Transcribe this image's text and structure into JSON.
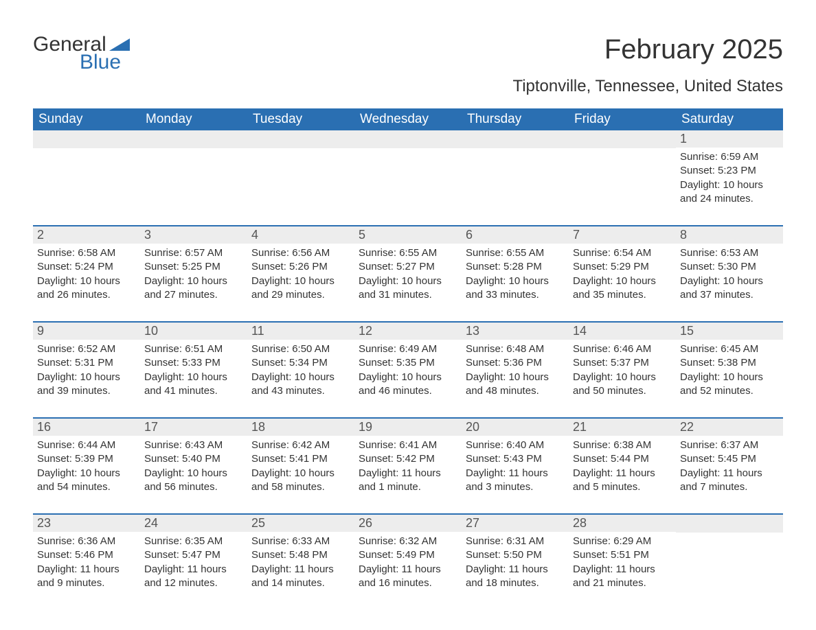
{
  "logo": {
    "text1": "General",
    "text2": "Blue",
    "flag_color": "#2a6fb2"
  },
  "title": "February 2025",
  "subtitle": "Tiptonville, Tennessee, United States",
  "day_headers": [
    "Sunday",
    "Monday",
    "Tuesday",
    "Wednesday",
    "Thursday",
    "Friday",
    "Saturday"
  ],
  "colors": {
    "header_bg": "#2a6fb2",
    "header_text": "#ffffff",
    "daynum_bg": "#ededed",
    "text": "#333333",
    "border": "#2a6fb2"
  },
  "weeks": [
    [
      {
        "n": "",
        "sr": "",
        "ss": "",
        "dl": ""
      },
      {
        "n": "",
        "sr": "",
        "ss": "",
        "dl": ""
      },
      {
        "n": "",
        "sr": "",
        "ss": "",
        "dl": ""
      },
      {
        "n": "",
        "sr": "",
        "ss": "",
        "dl": ""
      },
      {
        "n": "",
        "sr": "",
        "ss": "",
        "dl": ""
      },
      {
        "n": "",
        "sr": "",
        "ss": "",
        "dl": ""
      },
      {
        "n": "1",
        "sr": "Sunrise: 6:59 AM",
        "ss": "Sunset: 5:23 PM",
        "dl": "Daylight: 10 hours and 24 minutes."
      }
    ],
    [
      {
        "n": "2",
        "sr": "Sunrise: 6:58 AM",
        "ss": "Sunset: 5:24 PM",
        "dl": "Daylight: 10 hours and 26 minutes."
      },
      {
        "n": "3",
        "sr": "Sunrise: 6:57 AM",
        "ss": "Sunset: 5:25 PM",
        "dl": "Daylight: 10 hours and 27 minutes."
      },
      {
        "n": "4",
        "sr": "Sunrise: 6:56 AM",
        "ss": "Sunset: 5:26 PM",
        "dl": "Daylight: 10 hours and 29 minutes."
      },
      {
        "n": "5",
        "sr": "Sunrise: 6:55 AM",
        "ss": "Sunset: 5:27 PM",
        "dl": "Daylight: 10 hours and 31 minutes."
      },
      {
        "n": "6",
        "sr": "Sunrise: 6:55 AM",
        "ss": "Sunset: 5:28 PM",
        "dl": "Daylight: 10 hours and 33 minutes."
      },
      {
        "n": "7",
        "sr": "Sunrise: 6:54 AM",
        "ss": "Sunset: 5:29 PM",
        "dl": "Daylight: 10 hours and 35 minutes."
      },
      {
        "n": "8",
        "sr": "Sunrise: 6:53 AM",
        "ss": "Sunset: 5:30 PM",
        "dl": "Daylight: 10 hours and 37 minutes."
      }
    ],
    [
      {
        "n": "9",
        "sr": "Sunrise: 6:52 AM",
        "ss": "Sunset: 5:31 PM",
        "dl": "Daylight: 10 hours and 39 minutes."
      },
      {
        "n": "10",
        "sr": "Sunrise: 6:51 AM",
        "ss": "Sunset: 5:33 PM",
        "dl": "Daylight: 10 hours and 41 minutes."
      },
      {
        "n": "11",
        "sr": "Sunrise: 6:50 AM",
        "ss": "Sunset: 5:34 PM",
        "dl": "Daylight: 10 hours and 43 minutes."
      },
      {
        "n": "12",
        "sr": "Sunrise: 6:49 AM",
        "ss": "Sunset: 5:35 PM",
        "dl": "Daylight: 10 hours and 46 minutes."
      },
      {
        "n": "13",
        "sr": "Sunrise: 6:48 AM",
        "ss": "Sunset: 5:36 PM",
        "dl": "Daylight: 10 hours and 48 minutes."
      },
      {
        "n": "14",
        "sr": "Sunrise: 6:46 AM",
        "ss": "Sunset: 5:37 PM",
        "dl": "Daylight: 10 hours and 50 minutes."
      },
      {
        "n": "15",
        "sr": "Sunrise: 6:45 AM",
        "ss": "Sunset: 5:38 PM",
        "dl": "Daylight: 10 hours and 52 minutes."
      }
    ],
    [
      {
        "n": "16",
        "sr": "Sunrise: 6:44 AM",
        "ss": "Sunset: 5:39 PM",
        "dl": "Daylight: 10 hours and 54 minutes."
      },
      {
        "n": "17",
        "sr": "Sunrise: 6:43 AM",
        "ss": "Sunset: 5:40 PM",
        "dl": "Daylight: 10 hours and 56 minutes."
      },
      {
        "n": "18",
        "sr": "Sunrise: 6:42 AM",
        "ss": "Sunset: 5:41 PM",
        "dl": "Daylight: 10 hours and 58 minutes."
      },
      {
        "n": "19",
        "sr": "Sunrise: 6:41 AM",
        "ss": "Sunset: 5:42 PM",
        "dl": "Daylight: 11 hours and 1 minute."
      },
      {
        "n": "20",
        "sr": "Sunrise: 6:40 AM",
        "ss": "Sunset: 5:43 PM",
        "dl": "Daylight: 11 hours and 3 minutes."
      },
      {
        "n": "21",
        "sr": "Sunrise: 6:38 AM",
        "ss": "Sunset: 5:44 PM",
        "dl": "Daylight: 11 hours and 5 minutes."
      },
      {
        "n": "22",
        "sr": "Sunrise: 6:37 AM",
        "ss": "Sunset: 5:45 PM",
        "dl": "Daylight: 11 hours and 7 minutes."
      }
    ],
    [
      {
        "n": "23",
        "sr": "Sunrise: 6:36 AM",
        "ss": "Sunset: 5:46 PM",
        "dl": "Daylight: 11 hours and 9 minutes."
      },
      {
        "n": "24",
        "sr": "Sunrise: 6:35 AM",
        "ss": "Sunset: 5:47 PM",
        "dl": "Daylight: 11 hours and 12 minutes."
      },
      {
        "n": "25",
        "sr": "Sunrise: 6:33 AM",
        "ss": "Sunset: 5:48 PM",
        "dl": "Daylight: 11 hours and 14 minutes."
      },
      {
        "n": "26",
        "sr": "Sunrise: 6:32 AM",
        "ss": "Sunset: 5:49 PM",
        "dl": "Daylight: 11 hours and 16 minutes."
      },
      {
        "n": "27",
        "sr": "Sunrise: 6:31 AM",
        "ss": "Sunset: 5:50 PM",
        "dl": "Daylight: 11 hours and 18 minutes."
      },
      {
        "n": "28",
        "sr": "Sunrise: 6:29 AM",
        "ss": "Sunset: 5:51 PM",
        "dl": "Daylight: 11 hours and 21 minutes."
      },
      {
        "n": "",
        "sr": "",
        "ss": "",
        "dl": ""
      }
    ]
  ]
}
